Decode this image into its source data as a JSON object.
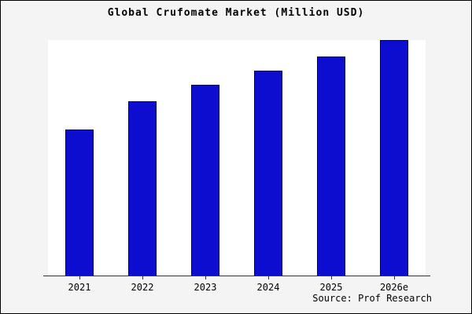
{
  "title": "Global Crufomate Market (Million USD)",
  "source_note": "Source: Prof Research",
  "chart_data": {
    "type": "bar",
    "title": "Global Crufomate Market (Million USD)",
    "categories": [
      "2021",
      "2022",
      "2023",
      "2024",
      "2025",
      "2026e"
    ],
    "values": [
      62,
      74,
      81,
      87,
      93,
      100
    ],
    "xlabel": "",
    "ylabel": "",
    "ylim": [
      0,
      100
    ],
    "grid": false,
    "legend": false,
    "bar_color": "#0d0dd0",
    "bar_border_color": "#000066",
    "plot_background": "#ffffff",
    "outer_background": "#f4f4f4"
  }
}
